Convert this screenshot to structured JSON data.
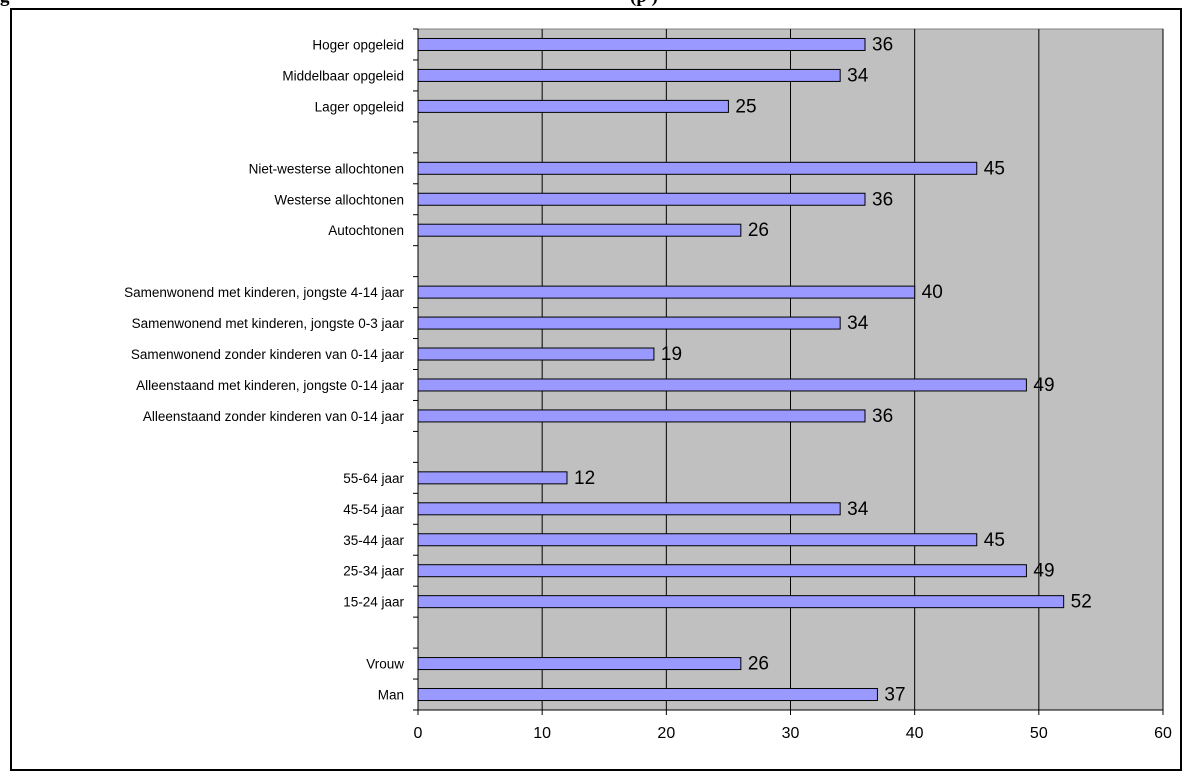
{
  "title": {
    "left_text": "g",
    "right_text": "(p                                                    )"
  },
  "chart_data": {
    "type": "bar",
    "orientation": "horizontal",
    "categories": [
      "Hoger opgeleid",
      "Middelbaar opgeleid",
      "Lager opgeleid",
      "Niet-westerse allochtonen",
      "Westerse allochtonen",
      "Autochtonen",
      "Samenwonend met kinderen, jongste 4-14 jaar",
      "Samenwonend met kinderen, jongste 0-3 jaar",
      "Samenwonend zonder kinderen van 0-14 jaar",
      "Alleenstaand met kinderen, jongste 0-14 jaar",
      "Alleenstaand zonder kinderen van 0-14 jaar",
      "55-64 jaar",
      "45-54 jaar",
      "35-44 jaar",
      "25-34 jaar",
      "15-24 jaar",
      "Vrouw",
      "Man"
    ],
    "groups": [
      3,
      3,
      5,
      5,
      2
    ],
    "values": [
      36,
      34,
      25,
      45,
      36,
      26,
      40,
      34,
      19,
      49,
      36,
      12,
      34,
      45,
      49,
      52,
      26,
      37
    ],
    "data_labels": [
      "36",
      "34",
      "25",
      "45",
      "36",
      "26",
      "40",
      "34",
      "19",
      "49",
      "36",
      "12",
      "34",
      "45",
      "49",
      "52",
      "26",
      "37"
    ],
    "xlim": [
      0,
      60
    ],
    "x_ticks": [
      "0",
      "10",
      "20",
      "30",
      "40",
      "50",
      "60"
    ],
    "grid": true,
    "plot_background": "#c0c0c0",
    "bar_color": "#9999ff",
    "bar_edge_color": "#000000",
    "legend": "none"
  }
}
